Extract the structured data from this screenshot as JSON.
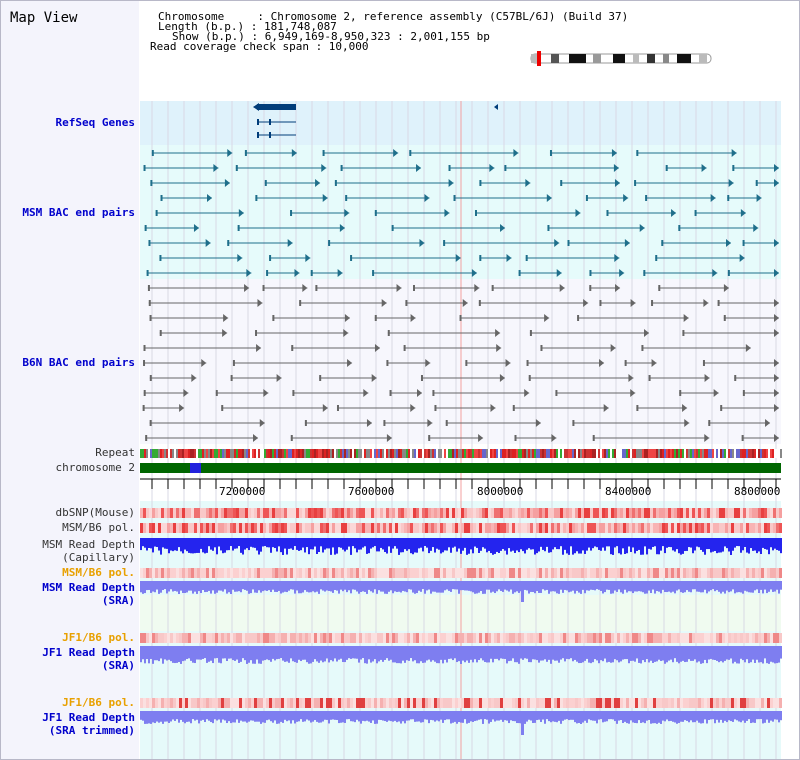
{
  "window": {
    "title": "Map View"
  },
  "header": {
    "chromosome": "Chromosome     : Chromosome 2, reference assembly (C57BL/6J) (Build 37)",
    "length": "Length (b.p.) : 181,748,087",
    "show": "Show (b.p.) : 6,949,169-8,950,323 : 2,001,155 bp",
    "coverage": "Read coverage check span : 10,000"
  },
  "tracks": {
    "refseq": "RefSeq Genes",
    "msm_bac": "MSM BAC end pairs",
    "b6n_bac": "B6N BAC end pairs",
    "repeat": "Repeat",
    "chromosome": "chromosome 2",
    "dbsnp": "dbSNP(Mouse)",
    "msm_pol": "MSM/B6 pol.",
    "msm_depth_cap_1": "MSM Read Depth",
    "msm_depth_cap_2": "(Capillary)",
    "msm_pol_2": "MSM/B6 pol.",
    "msm_depth_sra_1": "MSM Read Depth",
    "msm_depth_sra_2": "(SRA)",
    "jf1_pol": "JF1/B6 pol.",
    "jf1_depth_sra_1": "JF1 Read Depth",
    "jf1_depth_sra_2": "(SRA)",
    "jf1_pol_2": "JF1/B6 pol.",
    "jf1_depth_trim_1": "JF1 Read Depth",
    "jf1_depth_trim_2": "(SRA trimmed)"
  },
  "axis": {
    "ticks": [
      "7200000",
      "7600000",
      "8000000",
      "8400000",
      "8800000"
    ]
  },
  "colors": {
    "refseq_bg": "#dff2fb",
    "msm_bg": "#e6fbfb",
    "b6n_bg": "#f7f7fd",
    "lower_bg": "#e6fafa",
    "sra_bg": "#f0fbf0",
    "jf1_bg": "#e4fafa",
    "gene": "#003d7a",
    "msm_pair": "#1f6f8b",
    "b6n_pair": "#666666",
    "chrom": "#006600",
    "chrom_mark": "#2222dd",
    "depth_cap": "#2424ee",
    "depth_sra": "#7e7ef0"
  }
}
